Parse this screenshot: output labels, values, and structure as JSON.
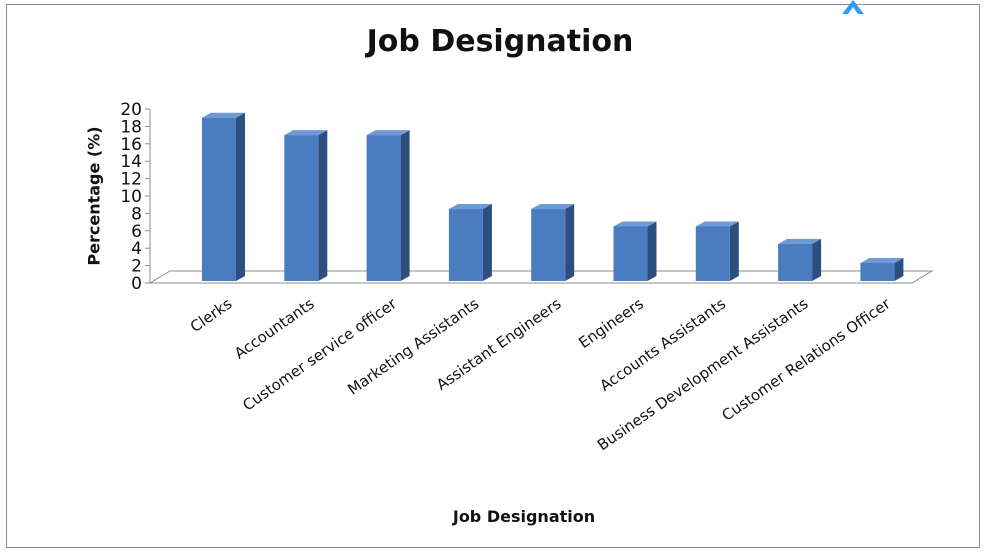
{
  "chart_data": {
    "type": "bar",
    "title": "Job Designation",
    "xlabel": "Job Designation",
    "ylabel": "Percentage (%)",
    "ylim": [
      0,
      20
    ],
    "yticks": [
      "0",
      "2",
      "4",
      "6",
      "8",
      "10",
      "12",
      "14",
      "16",
      "18",
      "20"
    ],
    "grid": false,
    "legend": "none",
    "categories": [
      "Clerks",
      "Accountants",
      "Customer service officer",
      "Marketing Assistants",
      "Assistant Engineers",
      "Engineers",
      "Accounts Assistants",
      "Business Development Assistants",
      "Customer Relations Officer"
    ],
    "values": [
      19,
      17,
      17,
      8.5,
      8.5,
      6.5,
      6.5,
      4.5,
      2.3
    ],
    "colors": {
      "bar_front": "#4a7cc0",
      "bar_side": "#2c4f7e",
      "bar_top": "#6e9bd6"
    }
  }
}
